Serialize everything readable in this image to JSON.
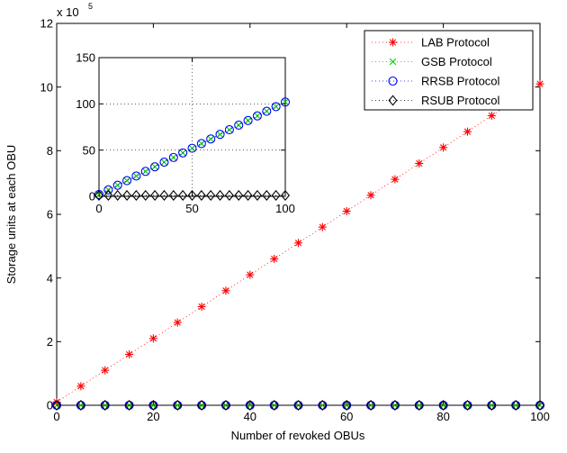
{
  "chart_data": [
    {
      "type": "scatter",
      "xlabel": "Number of revoked OBUs",
      "ylabel": "Storage units at each OBU",
      "y_exponent_label": "x 10",
      "y_exponent_power": "5",
      "xlim": [
        0,
        100
      ],
      "ylim": [
        0,
        12
      ],
      "x_ticks": [
        "0",
        "20",
        "40",
        "60",
        "80",
        "100"
      ],
      "y_ticks": [
        "0",
        "2",
        "4",
        "6",
        "8",
        "10",
        "12"
      ],
      "grid": false,
      "legend_position": "top-right",
      "x": [
        0,
        5,
        10,
        15,
        20,
        25,
        30,
        35,
        40,
        45,
        50,
        55,
        60,
        65,
        70,
        75,
        80,
        85,
        90,
        95,
        100
      ],
      "series": [
        {
          "name": "LAB Protocol",
          "color": "#ff0000",
          "marker": "star",
          "line": "dotted",
          "values": [
            0.1,
            0.6,
            1.1,
            1.6,
            2.1,
            2.6,
            3.1,
            3.6,
            4.1,
            4.6,
            5.1,
            5.6,
            6.1,
            6.6,
            7.1,
            7.6,
            8.1,
            8.6,
            9.1,
            9.6,
            10.1
          ]
        },
        {
          "name": "GSB Protocol",
          "color": "#00cc00",
          "marker": "x",
          "line": "dotted",
          "values": [
            0,
            0,
            0,
            0,
            0,
            0,
            0,
            0,
            0,
            0,
            0,
            0,
            0,
            0,
            0,
            0,
            0,
            0,
            0,
            0,
            0
          ]
        },
        {
          "name": "RRSB Protocol",
          "color": "#0000ff",
          "marker": "circle",
          "line": "dotted",
          "values": [
            0,
            0,
            0,
            0,
            0,
            0,
            0,
            0,
            0,
            0,
            0,
            0,
            0,
            0,
            0,
            0,
            0,
            0,
            0,
            0,
            0
          ]
        },
        {
          "name": "RSUB Protocol",
          "color": "#000000",
          "marker": "diamond",
          "line": "dotted",
          "values": [
            0,
            0,
            0,
            0,
            0,
            0,
            0,
            0,
            0,
            0,
            0,
            0,
            0,
            0,
            0,
            0,
            0,
            0,
            0,
            0,
            0
          ]
        }
      ]
    },
    {
      "type": "scatter",
      "role": "inset",
      "xlim": [
        0,
        100
      ],
      "ylim": [
        0,
        150
      ],
      "x_ticks": [
        "0",
        "50",
        "100"
      ],
      "y_ticks": [
        "0",
        "50",
        "100",
        "150"
      ],
      "grid": true,
      "x": [
        0,
        5,
        10,
        15,
        20,
        25,
        30,
        35,
        40,
        45,
        50,
        55,
        60,
        65,
        70,
        75,
        80,
        85,
        90,
        95,
        100
      ],
      "series": [
        {
          "name": "GSB Protocol",
          "color": "#00cc00",
          "marker": "x",
          "line": "dotted",
          "values": [
            2,
            7,
            12,
            17,
            22,
            27,
            32,
            37,
            42,
            47,
            52,
            57,
            62,
            67,
            72,
            77,
            82,
            87,
            92,
            97,
            102
          ]
        },
        {
          "name": "RRSB Protocol",
          "color": "#0000ff",
          "marker": "circle",
          "line": "dotted",
          "values": [
            2,
            7,
            12,
            17,
            22,
            27,
            32,
            37,
            42,
            47,
            52,
            57,
            62,
            67,
            72,
            77,
            82,
            87,
            92,
            97,
            102
          ]
        },
        {
          "name": "RSUB Protocol",
          "color": "#000000",
          "marker": "diamond",
          "line": "dotted",
          "values": [
            1,
            1,
            1,
            1,
            1,
            1,
            1,
            1,
            1,
            1,
            1,
            1,
            1,
            1,
            1,
            1,
            1,
            1,
            1,
            1,
            1
          ]
        }
      ]
    }
  ]
}
